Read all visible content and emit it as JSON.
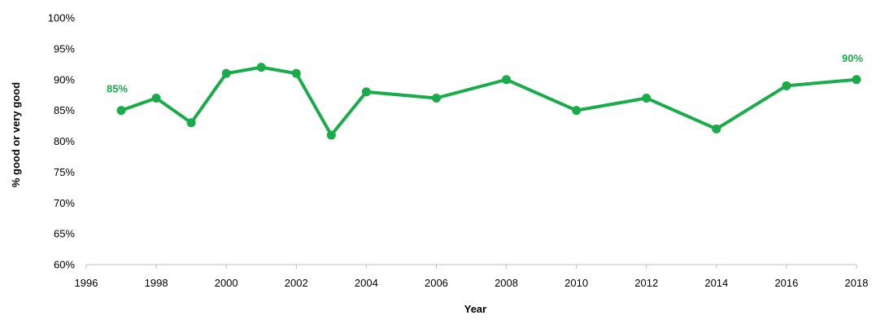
{
  "chart_data": {
    "type": "line",
    "xlabel": "Year",
    "ylabel": "% good or very good",
    "xlim": [
      1996,
      2018
    ],
    "ylim": [
      60,
      100
    ],
    "x_ticks": [
      1996,
      1998,
      2000,
      2002,
      2004,
      2006,
      2008,
      2010,
      2012,
      2014,
      2016,
      2018
    ],
    "x_tick_labels": [
      "1996",
      "1998",
      "2000",
      "2002",
      "2004",
      "2006",
      "2008",
      "2010",
      "2012",
      "2014",
      "2016",
      "2018"
    ],
    "y_ticks": [
      60,
      65,
      70,
      75,
      80,
      85,
      90,
      95,
      100
    ],
    "y_tick_labels": [
      "60%",
      "65%",
      "70%",
      "75%",
      "80%",
      "85%",
      "90%",
      "95%",
      "100%"
    ],
    "grid": false,
    "legend": "none",
    "series": [
      {
        "color": "#1aab4b",
        "x": [
          1997,
          1998,
          1999,
          2000,
          2001,
          2002,
          2003,
          2004,
          2006,
          2008,
          2010,
          2012,
          2014,
          2016,
          2018
        ],
        "y": [
          85,
          87,
          83,
          91,
          92,
          91,
          81,
          88,
          87,
          90,
          85,
          87,
          82,
          89,
          90
        ]
      }
    ],
    "annotations": [
      {
        "x": 1997,
        "y": 85,
        "text": "85%"
      },
      {
        "x": 2018,
        "y": 90,
        "text": "90%"
      }
    ]
  }
}
